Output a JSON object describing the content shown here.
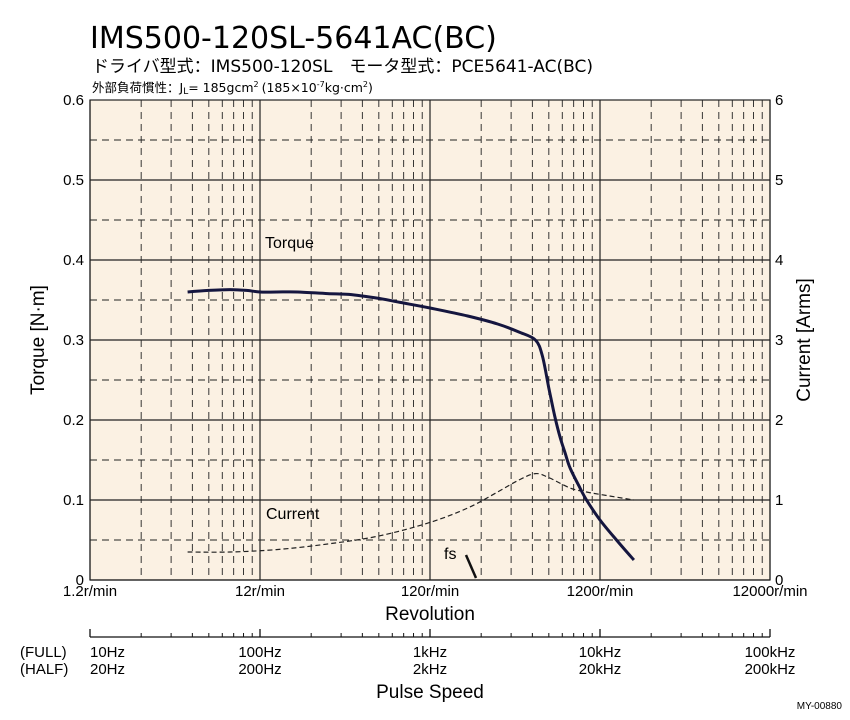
{
  "title": "IMS500-120SL-5641AC(BC)",
  "subtitle": "ドライバ型式：IMS500-120SL　モータ型式：PCE5641-AC(BC)",
  "inertia_label": "外部負荷慣性：J",
  "inertia_sub": "L",
  "inertia_value": "= 185gcm",
  "inertia_value_sup": "2",
  "inertia_paren": "(185×10",
  "inertia_paren_sup": "-7",
  "inertia_paren_unit": "kg·cm",
  "inertia_paren_sup2": "2",
  "inertia_paren_end": ")",
  "doc_code": "MY-00880",
  "colors": {
    "plot_bg": "#fbf1e3",
    "torque_line": "#15163f",
    "current_line": "#222222",
    "grid": "#222222"
  },
  "chart_data": {
    "type": "line",
    "x_scale": "log",
    "xlim": [
      1.2,
      12000
    ],
    "x_tick_values": [
      1.2,
      12,
      120,
      1200,
      12000
    ],
    "x_tick_labels": [
      "1.2r/min",
      "12r/min",
      "120r/min",
      "1200r/min",
      "12000r/min"
    ],
    "xlabel": "Revolution",
    "ylabel": "Torque  [N·m]",
    "ylim": [
      0,
      0.6
    ],
    "y_ticks": [
      "0",
      "0.1",
      "0.2",
      "0.3",
      "0.4",
      "0.5",
      "0.6"
    ],
    "y2label": "Current  [Arms]",
    "y2lim": [
      0,
      6
    ],
    "y2_ticks": [
      "0",
      "1",
      "2",
      "3",
      "4",
      "5",
      "6"
    ],
    "grid": true,
    "pulse_speed": {
      "label": "Pulse Speed",
      "full_label": "(FULL)",
      "half_label": "(HALF)",
      "full_ticks": [
        "10Hz",
        "100Hz",
        "1kHz",
        "10kHz",
        "100kHz"
      ],
      "half_ticks": [
        "20Hz",
        "200Hz",
        "2kHz",
        "20kHz",
        "200kHz"
      ]
    },
    "series": [
      {
        "name": "Torque",
        "axis": "left",
        "x": [
          4.5,
          6,
          8,
          10,
          12,
          15,
          20,
          30,
          40,
          60,
          80,
          120,
          200,
          300,
          400,
          500,
          550,
          600,
          650,
          700,
          750,
          800,
          900,
          1000,
          1200,
          1500,
          1900
        ],
        "y": [
          0.36,
          0.362,
          0.363,
          0.362,
          0.36,
          0.36,
          0.36,
          0.358,
          0.357,
          0.352,
          0.347,
          0.34,
          0.33,
          0.32,
          0.31,
          0.3,
          0.28,
          0.24,
          0.205,
          0.178,
          0.158,
          0.14,
          0.118,
          0.1,
          0.075,
          0.05,
          0.025
        ]
      },
      {
        "name": "Current",
        "axis": "right",
        "x": [
          4.5,
          8,
          15,
          30,
          60,
          120,
          200,
          300,
          400,
          500,
          600,
          800,
          1000,
          1200,
          1900
        ],
        "y": [
          0.35,
          0.35,
          0.38,
          0.45,
          0.55,
          0.72,
          0.9,
          1.1,
          1.25,
          1.33,
          1.28,
          1.15,
          1.1,
          1.07,
          1.0
        ]
      }
    ],
    "annotations": [
      {
        "text": "Torque"
      },
      {
        "text": "Current"
      },
      {
        "text": "fs",
        "x": 180,
        "y": 0
      }
    ]
  }
}
